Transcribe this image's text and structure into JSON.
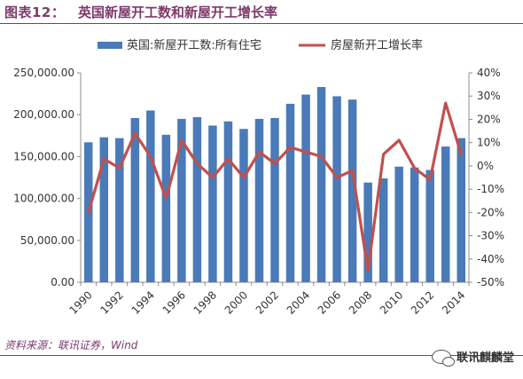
{
  "header": {
    "figure_label": "图表12：",
    "title": "英国新屋开工数和新屋开工增长率"
  },
  "source": "资料来源：联讯证券，Wind",
  "watermark": {
    "icon": "wechat-icon",
    "text": "联讯麒麟堂"
  },
  "colors": {
    "bar": "#4a7ab8",
    "line": "#c0504d",
    "accent": "#7d3a6b",
    "axis": "#8c8c8c"
  },
  "chart_data": {
    "type": "bar",
    "title": "",
    "xlabel": "",
    "ylabel": "",
    "legend_position": "top",
    "x": [
      1990,
      1991,
      1992,
      1993,
      1994,
      1995,
      1996,
      1997,
      1998,
      1999,
      2000,
      2001,
      2002,
      2003,
      2004,
      2005,
      2006,
      2007,
      2008,
      2009,
      2010,
      2011,
      2012,
      2013,
      2014
    ],
    "x_tick_labels": [
      "1990",
      "1992",
      "1994",
      "1996",
      "1998",
      "2000",
      "2002",
      "2004",
      "2006",
      "2008",
      "2010",
      "2012",
      "2014"
    ],
    "y_left": {
      "range": [
        0,
        250000
      ],
      "tick_labels": [
        "0.00",
        "50,000.00",
        "100,000.00",
        "150,000.00",
        "200,000.00",
        "250,000.00"
      ]
    },
    "y_right": {
      "range": [
        -50,
        40
      ],
      "unit": "%",
      "tick_labels": [
        "-50%",
        "-40%",
        "-30%",
        "-20%",
        "-10%",
        "0%",
        "10%",
        "20%",
        "30%",
        "40%"
      ]
    },
    "grid": false,
    "series": [
      {
        "name": "英国:新屋开工数:所有住宅",
        "type": "bar",
        "axis": "left",
        "values": [
          167000,
          173000,
          172000,
          196000,
          205000,
          176000,
          195000,
          197000,
          187000,
          192000,
          183000,
          195000,
          196000,
          213000,
          224000,
          233000,
          222000,
          218000,
          119000,
          124000,
          138000,
          137000,
          134000,
          162000,
          172000
        ]
      },
      {
        "name": "房屋新开工增长率",
        "type": "line",
        "axis": "right",
        "values": [
          -20,
          3,
          -1,
          14,
          4,
          -14,
          11,
          1,
          -5,
          3,
          -5,
          6,
          1,
          8,
          6,
          4,
          -5,
          -2,
          -45,
          5,
          11,
          -1,
          -6,
          27,
          5
        ]
      }
    ]
  }
}
